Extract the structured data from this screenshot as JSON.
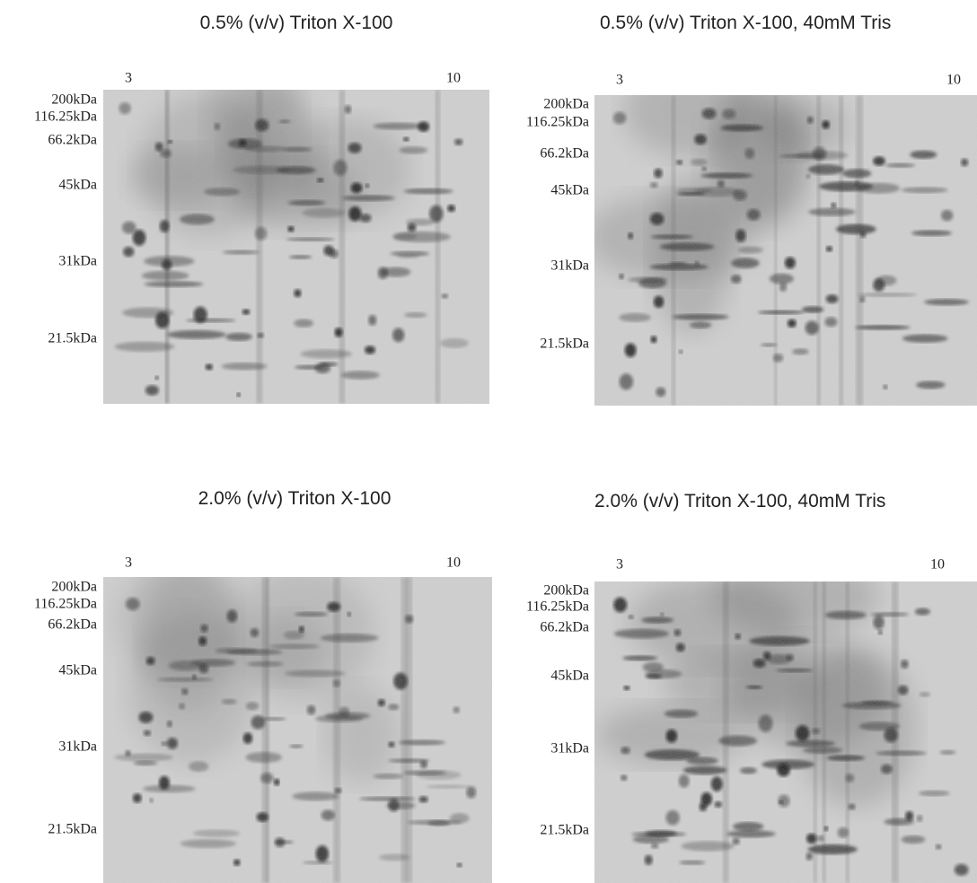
{
  "panels": [
    {
      "title": "0.5% (v/v) Triton X-100",
      "ph_low": "3",
      "ph_high": "10",
      "mw_markers": [
        "200kDa",
        "116.25kDa",
        "66.2kDa",
        "45kDa",
        "31kDa",
        "21.5kDa"
      ]
    },
    {
      "title": "0.5% (v/v) Triton X-100, 40mM Tris",
      "ph_low": "3",
      "ph_high": "10",
      "mw_markers": [
        "200kDa",
        "116.25kDa",
        "66.2kDa",
        "45kDa",
        "31kDa",
        "21.5kDa"
      ]
    },
    {
      "title": "2.0% (v/v) Triton X-100",
      "ph_low": "3",
      "ph_high": "10",
      "mw_markers": [
        "200kDa",
        "116.25kDa",
        "66.2kDa",
        "45kDa",
        "31kDa",
        "21.5kDa"
      ]
    },
    {
      "title": "2.0% (v/v) Triton X-100, 40mM Tris",
      "ph_low": "3",
      "ph_high": "10",
      "mw_markers": [
        "200kDa",
        "116.25kDa",
        "66.2kDa",
        "45kDa",
        "31kDa",
        "21.5kDa"
      ]
    }
  ]
}
